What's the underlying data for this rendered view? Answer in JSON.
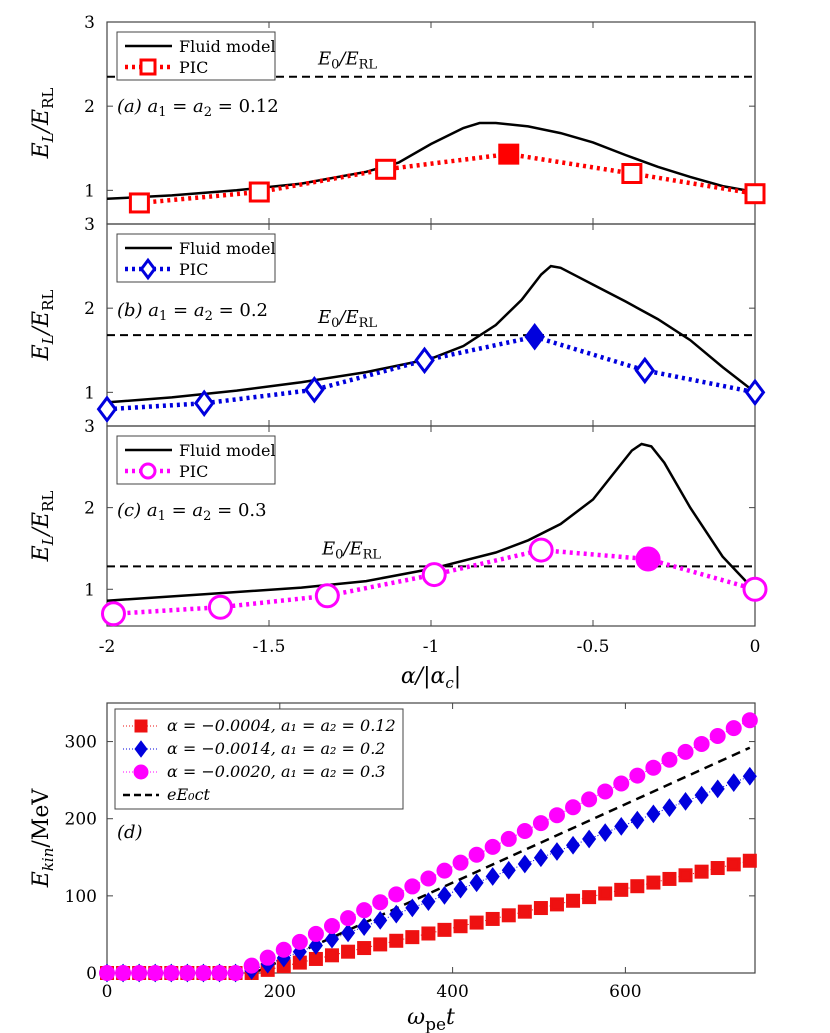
{
  "chart_data": [
    {
      "id": "a",
      "type": "line",
      "ylabel": "E_L/E_RL",
      "ylim": [
        0.6,
        3
      ],
      "yticks": [
        1,
        2,
        3
      ],
      "xlim": [
        -2,
        0
      ],
      "annotation": "(a) a₁ = a₂ = 0.12",
      "ref_label": "E₀/E_RL",
      "ref_value": 2.35,
      "legend": [
        "Fluid model",
        "PIC"
      ],
      "pic_color": "#ff0000",
      "pic_marker": "square",
      "fluid": {
        "x": [
          -2.0,
          -1.8,
          -1.6,
          -1.4,
          -1.2,
          -1.1,
          -1.0,
          -0.9,
          -0.85,
          -0.8,
          -0.7,
          -0.6,
          -0.5,
          -0.4,
          -0.3,
          -0.2,
          -0.1,
          0.0
        ],
        "y": [
          0.9,
          0.94,
          1.0,
          1.08,
          1.22,
          1.33,
          1.55,
          1.74,
          1.8,
          1.8,
          1.76,
          1.68,
          1.57,
          1.42,
          1.28,
          1.16,
          1.05,
          0.98
        ]
      },
      "pic": {
        "x": [
          -1.9,
          -1.53,
          -1.14,
          -0.76,
          -0.38,
          0.0
        ],
        "y": [
          0.85,
          0.98,
          1.25,
          1.43,
          1.2,
          0.96
        ],
        "filled_index": 3
      }
    },
    {
      "id": "b",
      "type": "line",
      "ylabel": "E_L/E_RL",
      "ylim": [
        0.6,
        3
      ],
      "yticks": [
        1,
        2,
        3
      ],
      "xlim": [
        -2,
        0
      ],
      "annotation": "(b) a₁ = a₂ = 0.2",
      "ref_label": "E₀/E_RL",
      "ref_value": 1.68,
      "legend": [
        "Fluid model",
        "PIC"
      ],
      "pic_color": "#0000dd",
      "pic_marker": "diamond",
      "fluid": {
        "x": [
          -2.0,
          -1.8,
          -1.6,
          -1.4,
          -1.2,
          -1.0,
          -0.9,
          -0.8,
          -0.72,
          -0.66,
          -0.63,
          -0.6,
          -0.55,
          -0.5,
          -0.4,
          -0.3,
          -0.2,
          -0.1,
          0.0
        ],
        "y": [
          0.88,
          0.94,
          1.02,
          1.12,
          1.24,
          1.4,
          1.55,
          1.8,
          2.1,
          2.4,
          2.5,
          2.48,
          2.38,
          2.28,
          2.08,
          1.87,
          1.62,
          1.3,
          1.0
        ]
      },
      "pic": {
        "x": [
          -2.0,
          -1.7,
          -1.36,
          -1.02,
          -0.68,
          -0.34,
          0.0
        ],
        "y": [
          0.8,
          0.87,
          1.03,
          1.38,
          1.66,
          1.26,
          1.0
        ],
        "filled_index": 4
      }
    },
    {
      "id": "c",
      "type": "line",
      "ylabel": "E_L/E_RL",
      "ylim": [
        0.55,
        3
      ],
      "yticks": [
        1,
        2,
        3
      ],
      "xlim": [
        -2,
        0
      ],
      "xticks": [
        -2,
        -1.5,
        -1,
        -0.5,
        0
      ],
      "xlabel": "α/|αc|",
      "annotation": "(c) a₁ = a₂ = 0.3",
      "ref_label": "E₀/E_RL",
      "ref_value": 1.28,
      "legend": [
        "Fluid model",
        "PIC"
      ],
      "pic_color": "#ff00ff",
      "pic_marker": "circle",
      "fluid": {
        "x": [
          -2.0,
          -1.7,
          -1.4,
          -1.2,
          -1.0,
          -0.8,
          -0.7,
          -0.6,
          -0.5,
          -0.44,
          -0.38,
          -0.35,
          -0.32,
          -0.28,
          -0.2,
          -0.1,
          0.0
        ],
        "y": [
          0.86,
          0.94,
          1.02,
          1.1,
          1.25,
          1.45,
          1.6,
          1.8,
          2.1,
          2.4,
          2.7,
          2.78,
          2.75,
          2.55,
          2.0,
          1.4,
          0.98
        ]
      },
      "pic": {
        "x": [
          -1.98,
          -1.65,
          -1.32,
          -0.99,
          -0.66,
          -0.33,
          0.0
        ],
        "y": [
          0.7,
          0.78,
          0.92,
          1.18,
          1.48,
          1.37,
          1.0
        ],
        "filled_index": 5
      }
    },
    {
      "id": "d",
      "type": "scatter",
      "annotation": "(d)",
      "xlabel": "ωpe t",
      "ylabel": "Ekin/MeV",
      "xlim": [
        0,
        750
      ],
      "ylim": [
        0,
        350
      ],
      "xticks": [
        0,
        200,
        400,
        600
      ],
      "yticks": [
        0,
        100,
        200,
        300
      ],
      "series": [
        {
          "name": "α = −0.0004, a₁ = a₂ = 0.12",
          "color": "#ee1111",
          "marker": "square",
          "t1": 170,
          "slope": 0.2535
        },
        {
          "name": "α = −0.0014, a₁ = a₂ = 0.2",
          "color": "#0000dd",
          "marker": "diamond",
          "t1": 160,
          "slope": 0.4366
        },
        {
          "name": "α = −0.0020, a₁ = a₂ = 0.3",
          "color": "#ff00ff",
          "marker": "circle",
          "t1": 150,
          "slope": 0.5517
        },
        {
          "name": "eE₀ct",
          "color": "#000000",
          "marker": "dashed",
          "t1": 170,
          "slope": 0.5088
        }
      ],
      "sample_step": 18.6,
      "t_max": 744
    }
  ]
}
